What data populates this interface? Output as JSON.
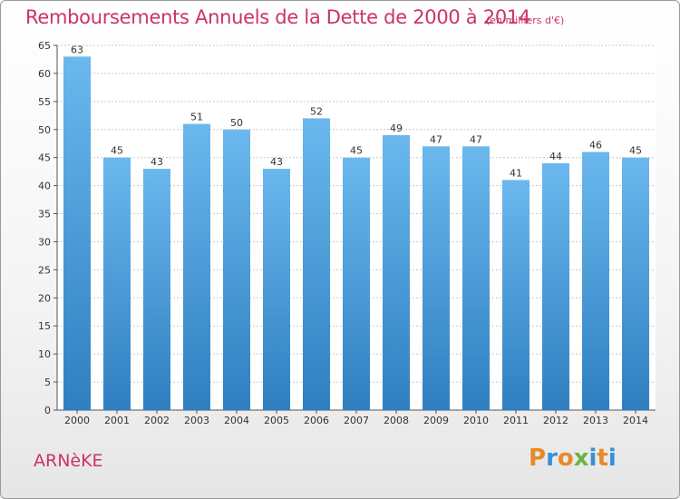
{
  "header": {
    "title": "Remboursements Annuels de la Dette de 2000 à 2014",
    "unit": "(en milliers d'€)"
  },
  "footer": {
    "commune": "ARNèKE",
    "logo": "Proxiti",
    "logo_colors": [
      "#e8892a",
      "#3a8fd6",
      "#e8892a",
      "#6cb33f",
      "#3a8fd6",
      "#e8892a",
      "#3a8fd6"
    ]
  },
  "colors": {
    "bar_top": "#6ab8ee",
    "bar_bottom": "#2f7fc1",
    "accent": "#cc3366"
  },
  "chart_data": {
    "type": "bar",
    "title": "Remboursements Annuels de la Dette de 2000 à 2014",
    "xlabel": "",
    "ylabel": "",
    "categories": [
      "2000",
      "2001",
      "2002",
      "2003",
      "2004",
      "2005",
      "2006",
      "2007",
      "2008",
      "2009",
      "2010",
      "2011",
      "2012",
      "2013",
      "2014"
    ],
    "values": [
      63,
      45,
      43,
      51,
      50,
      43,
      52,
      45,
      49,
      47,
      47,
      41,
      44,
      46,
      45
    ],
    "ylim": [
      0,
      65
    ],
    "yticks": [
      0,
      5,
      10,
      15,
      20,
      25,
      30,
      35,
      40,
      45,
      50,
      55,
      60,
      65
    ],
    "grid": true
  }
}
